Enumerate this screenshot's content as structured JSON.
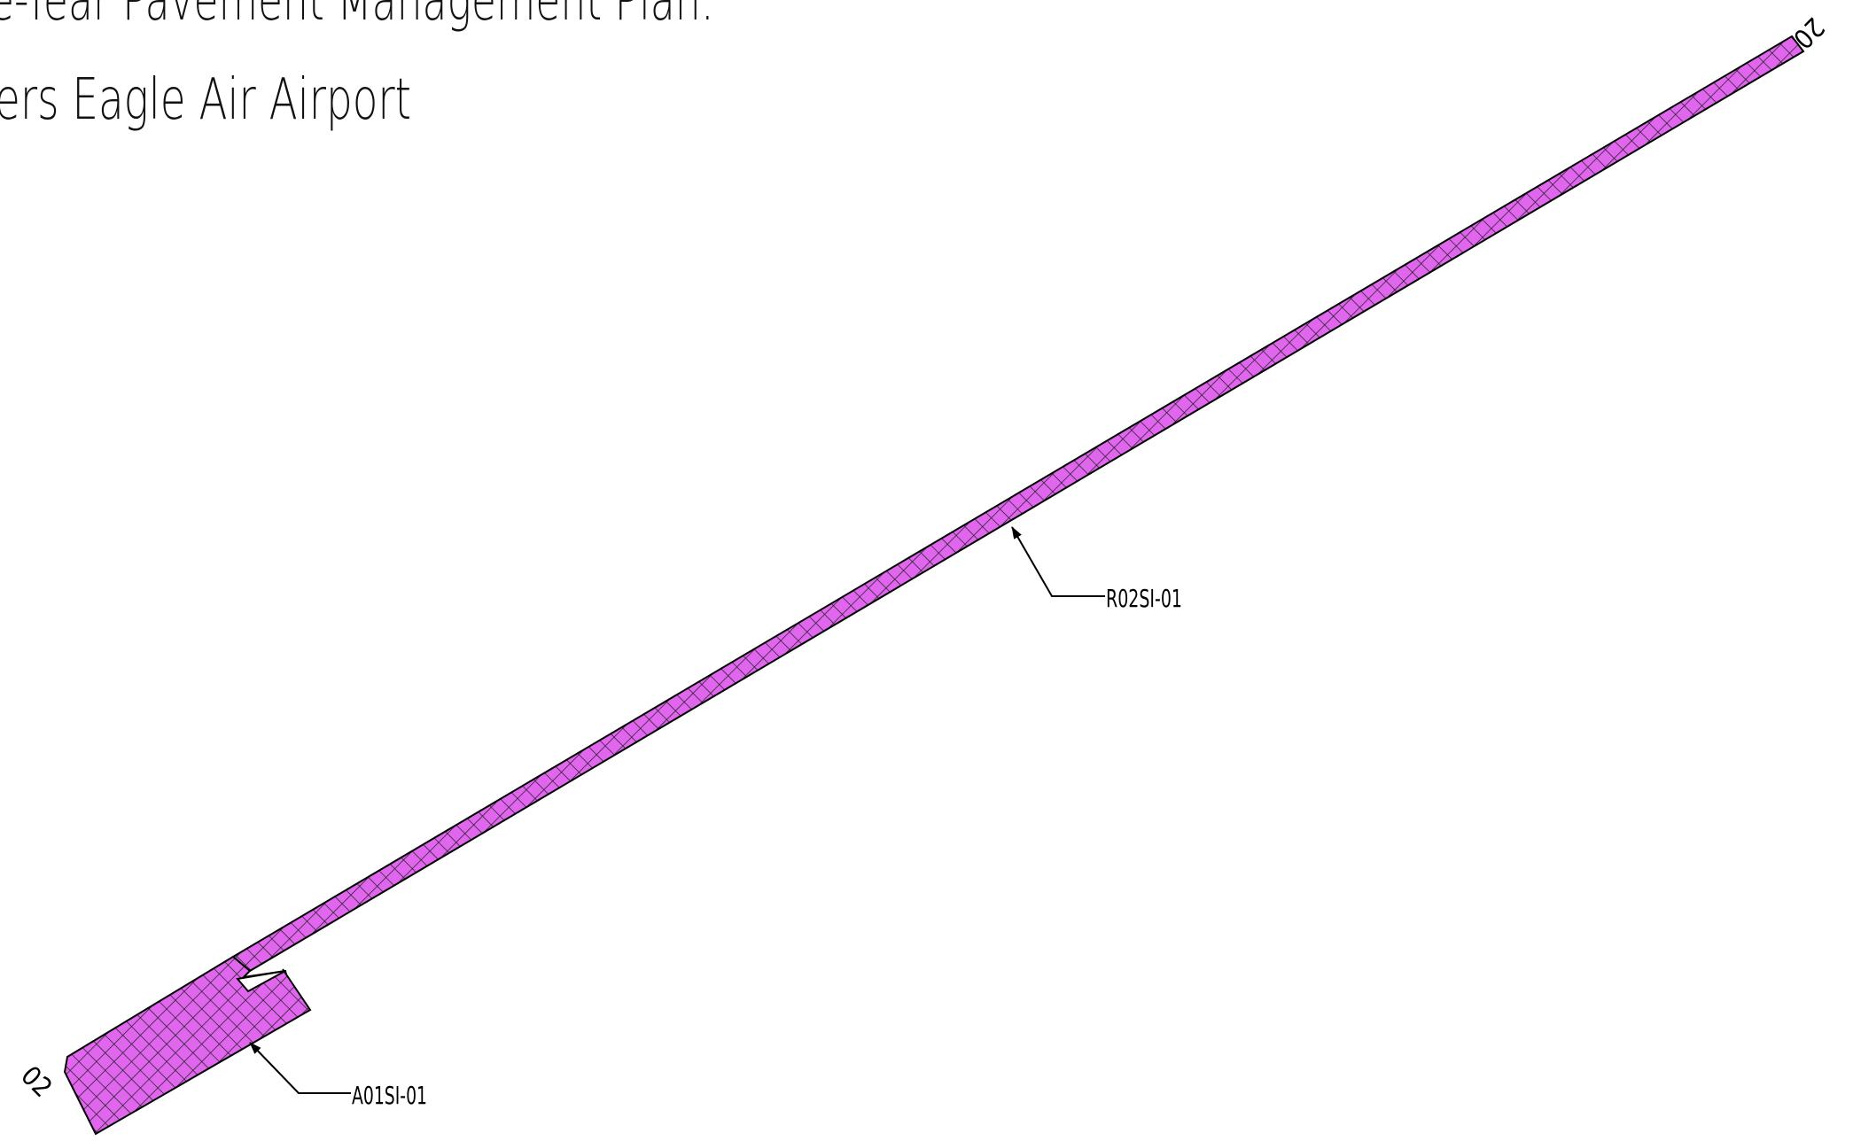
{
  "title": {
    "line1": "e-Year Pavement Management Plan:",
    "line2": "ers Eagle Air Airport"
  },
  "runway": {
    "end_top": "20",
    "end_bottom": "02"
  },
  "sections": [
    {
      "id": "runway",
      "label": "R02SI-01"
    },
    {
      "id": "apron",
      "label": "A01SI-01"
    }
  ],
  "colors": {
    "pavement_fill": "#e066ee",
    "hatch": "#1a1a1a",
    "linework": "#000000",
    "background": "#ffffff"
  }
}
